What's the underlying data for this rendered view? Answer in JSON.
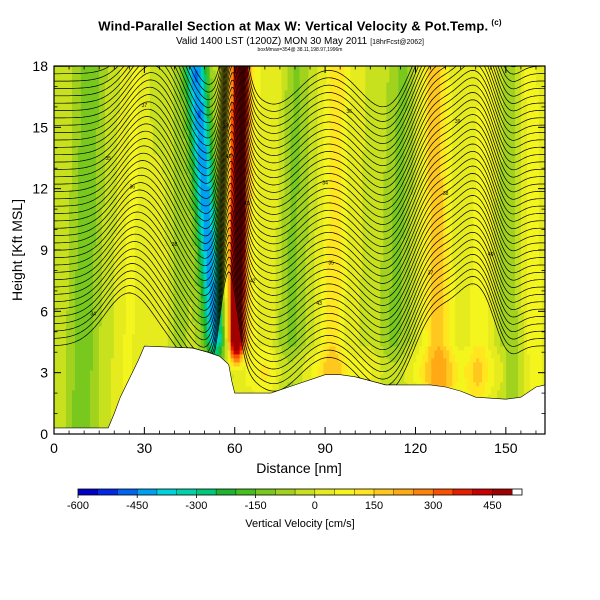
{
  "title": "Wind-Parallel Section at Max W: Vertical Velocity & Pot.Temp.",
  "copyright_mark": "(c)",
  "subtitle": "Valid 1400 LST (1200Z) MON 30 May 2011",
  "subtitle_run": "[18hrFcst@2062]",
  "note": "boxMmax=354@ 38.11,198.97,1996m",
  "chart_data": {
    "type": "heatmap",
    "title": "Wind-Parallel Section at Max W: Vertical Velocity & Pot.Temp.",
    "xlabel": "Distance [nm]",
    "ylabel": "Height [Kft MSL]",
    "xlim": [
      0,
      163
    ],
    "ylim": [
      0,
      18
    ],
    "x_ticks": [
      0,
      30,
      60,
      90,
      120,
      150
    ],
    "y_ticks": [
      0,
      3,
      6,
      9,
      12,
      15,
      18
    ],
    "colorbar": {
      "label": "Vertical Velocity [cm/s]",
      "tick_values": [
        -600,
        -450,
        -300,
        -150,
        0,
        150,
        300,
        450
      ],
      "tick_labels": [
        "-600",
        "-450",
        "-300",
        "-150",
        "0",
        "150",
        "300",
        "450"
      ],
      "range": [
        -600,
        525
      ],
      "colors": [
        "#0000c8",
        "#0028e6",
        "#0064f0",
        "#00a0f0",
        "#00d2dc",
        "#00d2aa",
        "#00c878",
        "#1eb432",
        "#46be1e",
        "#78c81e",
        "#a0d21e",
        "#c8e11e",
        "#e6eb1e",
        "#f5f51e",
        "#ffe61e",
        "#ffc81e",
        "#ffaa14",
        "#ff820a",
        "#fa5000",
        "#e61e00",
        "#c80000",
        "#a00000"
      ]
    },
    "terrain": {
      "x": [
        0,
        8,
        18,
        20,
        22,
        24,
        28,
        30,
        46,
        51,
        55,
        58,
        59,
        60,
        72,
        80,
        90,
        95,
        100,
        105,
        110,
        115,
        120,
        125,
        130,
        135,
        140,
        150,
        155,
        160,
        163
      ],
      "height": [
        0.3,
        0.3,
        0.3,
        1.0,
        1.8,
        2.4,
        3.6,
        4.3,
        4.2,
        4.0,
        3.8,
        3.4,
        2.6,
        2.0,
        2.0,
        2.4,
        2.9,
        2.9,
        2.8,
        2.6,
        2.4,
        2.4,
        2.4,
        2.4,
        2.3,
        2.1,
        1.8,
        1.7,
        1.8,
        2.3,
        2.4
      ]
    },
    "vertical_velocity_features": [
      {
        "name": "downdraft",
        "x_bottom": 56,
        "x_top": 47,
        "z_bottom": 3.5,
        "z_top": 18,
        "w_peak": -330
      },
      {
        "name": "updraft",
        "x_bottom": 60,
        "x_top": 62,
        "z_bottom": 3.0,
        "z_top": 18,
        "w_peak": 525
      },
      {
        "name": "secondary updraft",
        "x_bottom": 128,
        "x_top": 126,
        "z_bottom": 2.5,
        "z_top": 18,
        "w_peak": 180
      },
      {
        "name": "secondary updraft",
        "x_bottom": 90,
        "x_top": 94,
        "z_bottom": 3.0,
        "z_top": 18,
        "w_peak": 130
      }
    ],
    "potential_temperature_contours": {
      "interval_K": 1,
      "labels": [
        "34",
        "35",
        "36",
        "37",
        "38",
        "39",
        "40",
        "41",
        "42",
        "43"
      ]
    }
  }
}
